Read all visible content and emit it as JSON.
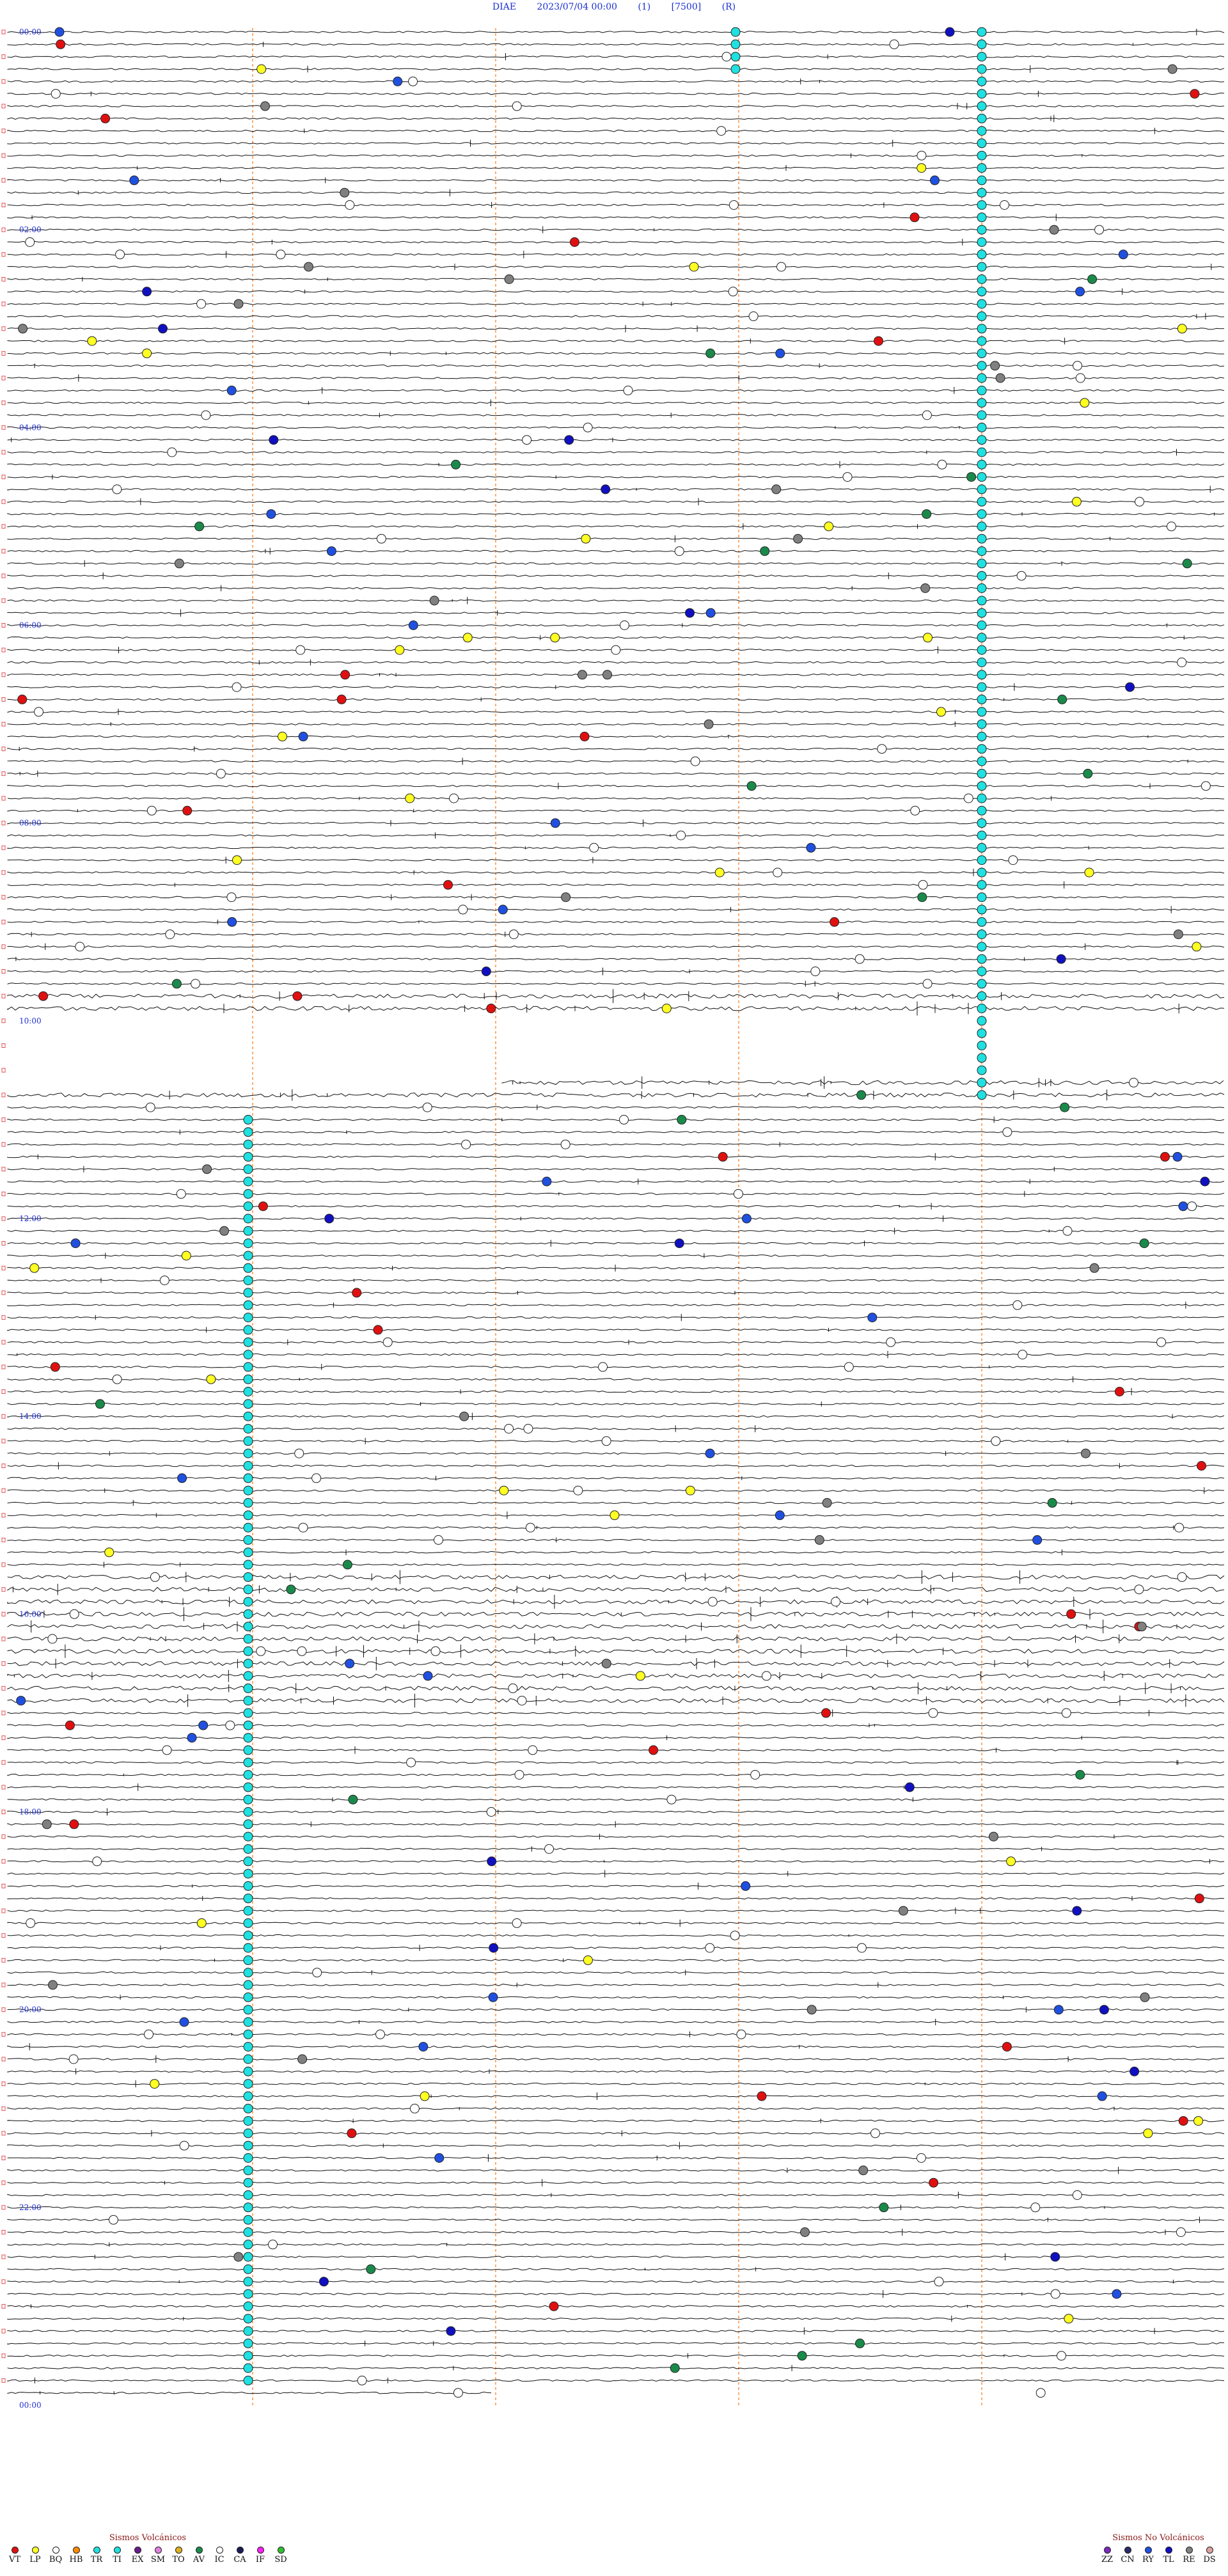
{
  "header": {
    "station": "DIAE",
    "datetime": "2023/07/04 00:00",
    "channel": "(1)",
    "scale": "[7500]",
    "mode": "(R)"
  },
  "time_labels": [
    "00:00",
    "02:00",
    "04:00",
    "06:00",
    "08:00",
    "10:00",
    "12:00",
    "14:00",
    "16:00",
    "18:00",
    "20:00",
    "22:00",
    "00:00"
  ],
  "legend_volcanic": {
    "title": "Sismos Volcánicos",
    "items": [
      {
        "code": "VT",
        "color": "#e01010"
      },
      {
        "code": "LP",
        "color": "#ffff22"
      },
      {
        "code": "BQ",
        "color": "#ffffff"
      },
      {
        "code": "HB",
        "color": "#ff8c00"
      },
      {
        "code": "TR",
        "color": "#20e0e0"
      },
      {
        "code": "TI",
        "color": "#20e0e0"
      },
      {
        "code": "EX",
        "color": "#6a1a8a"
      },
      {
        "code": "SM",
        "color": "#e080e0"
      },
      {
        "code": "TO",
        "color": "#e0b020"
      },
      {
        "code": "AV",
        "color": "#1a8a4a"
      },
      {
        "code": "IC",
        "color": "#ffffff"
      },
      {
        "code": "CA",
        "color": "#1a1a5a"
      },
      {
        "code": "IF",
        "color": "#ff20ff"
      },
      {
        "code": "SD",
        "color": "#30c030"
      }
    ]
  },
  "legend_nonvolcanic": {
    "title": "Sismos No Volcánicos",
    "items": [
      {
        "code": "ZZ",
        "color": "#7a2ac0"
      },
      {
        "code": "CN",
        "color": "#2a2a6a"
      },
      {
        "code": "RY",
        "color": "#2050e0"
      },
      {
        "code": "TL",
        "color": "#1010c0"
      },
      {
        "code": "RE",
        "color": "#808080"
      },
      {
        "code": "DS",
        "color": "#e0a0a0"
      }
    ]
  }
}
